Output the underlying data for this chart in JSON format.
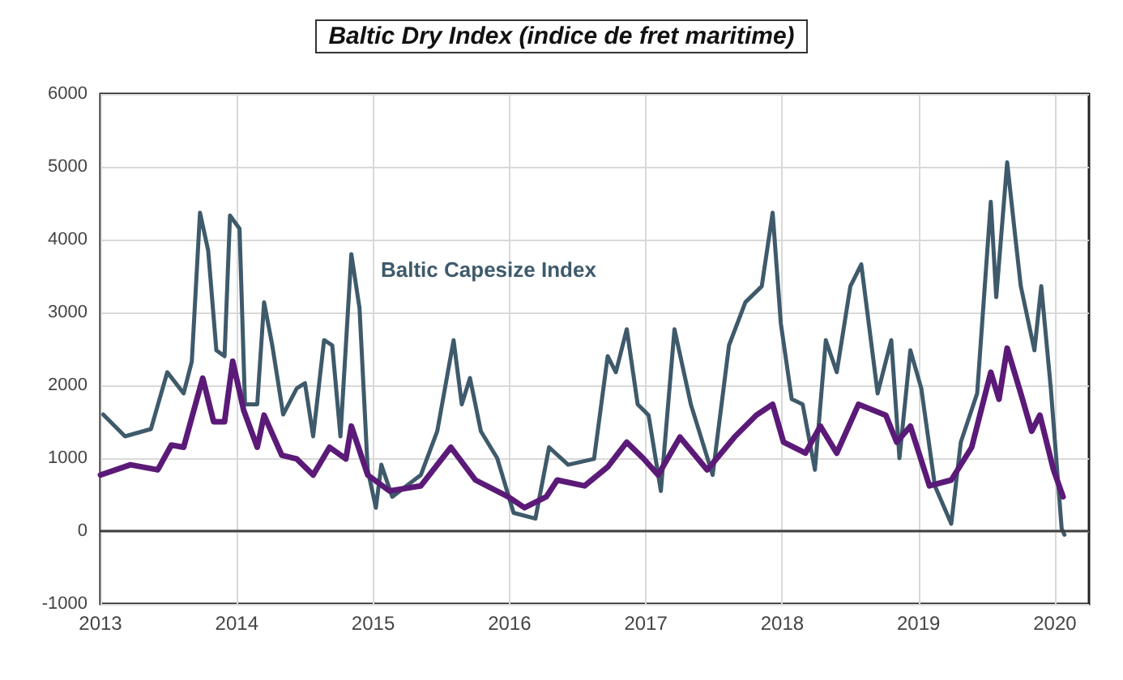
{
  "chart_data": {
    "type": "line",
    "title": "Baltic Dry Index (indice de fret maritime)",
    "xlim": [
      2013,
      2020.25
    ],
    "xticks": [
      2013,
      2014,
      2015,
      2016,
      2017,
      2018,
      2019,
      2020
    ],
    "ylim": [
      -1000,
      6000
    ],
    "yticks": [
      -1000,
      0,
      1000,
      2000,
      3000,
      4000,
      5000,
      6000
    ],
    "grid": true,
    "legend": false,
    "marker": "none",
    "line_style": "solid",
    "ref_lines": [
      {
        "axis": "y",
        "value": 0,
        "color": "#404040"
      }
    ],
    "series": [
      {
        "name": "Baltic Capesize Index",
        "color": "#3e5a6b",
        "x": [
          2013.02,
          2013.18,
          2013.37,
          2013.49,
          2013.61,
          2013.67,
          2013.73,
          2013.79,
          2013.85,
          2013.91,
          2013.95,
          2014.02,
          2014.06,
          2014.15,
          2014.2,
          2014.26,
          2014.34,
          2014.44,
          2014.5,
          2014.56,
          2014.64,
          2014.7,
          2014.76,
          2014.84,
          2014.9,
          2014.96,
          2015.02,
          2015.06,
          2015.14,
          2015.35,
          2015.47,
          2015.59,
          2015.65,
          2015.71,
          2015.79,
          2015.91,
          2016.03,
          2016.19,
          2016.29,
          2016.43,
          2016.62,
          2016.72,
          2016.78,
          2016.86,
          2016.94,
          2017.02,
          2017.11,
          2017.21,
          2017.33,
          2017.49,
          2017.61,
          2017.73,
          2017.85,
          2017.93,
          2017.99,
          2018.07,
          2018.15,
          2018.24,
          2018.32,
          2018.4,
          2018.5,
          2018.58,
          2018.7,
          2018.8,
          2018.86,
          2018.94,
          2019.02,
          2019.12,
          2019.24,
          2019.31,
          2019.43,
          2019.53,
          2019.57,
          2019.65,
          2019.71,
          2019.75,
          2019.85,
          2019.9,
          2019.97,
          2020.05,
          2020.07
        ],
        "values": [
          1600,
          1300,
          1400,
          2180,
          1890,
          2330,
          4370,
          3850,
          2480,
          2400,
          4330,
          4150,
          1740,
          1740,
          3140,
          2550,
          1600,
          1960,
          2030,
          1300,
          2620,
          2550,
          1300,
          3800,
          3060,
          840,
          320,
          910,
          470,
          770,
          1370,
          2620,
          1740,
          2100,
          1370,
          1000,
          250,
          170,
          1150,
          910,
          990,
          2400,
          2180,
          2770,
          1740,
          1590,
          550,
          2770,
          1740,
          770,
          2550,
          3140,
          3360,
          4370,
          2850,
          1810,
          1740,
          840,
          2620,
          2180,
          3360,
          3660,
          1890,
          2620,
          1000,
          2480,
          1960,
          620,
          100,
          1220,
          1890,
          4520,
          3210,
          5060,
          4030,
          3360,
          2480,
          3360,
          1960,
          30,
          -50
        ]
      },
      {
        "color": "#5b1a78",
        "x": [
          2013.0,
          2013.22,
          2013.42,
          2013.52,
          2013.61,
          2013.75,
          2013.83,
          2013.91,
          2013.97,
          2014.05,
          2014.15,
          2014.2,
          2014.33,
          2014.44,
          2014.56,
          2014.68,
          2014.8,
          2014.84,
          2014.96,
          2015.12,
          2015.35,
          2015.57,
          2015.75,
          2015.99,
          2016.11,
          2016.27,
          2016.35,
          2016.55,
          2016.72,
          2016.86,
          2016.98,
          2017.09,
          2017.25,
          2017.45,
          2017.65,
          2017.81,
          2017.93,
          2018.01,
          2018.17,
          2018.28,
          2018.4,
          2018.56,
          2018.76,
          2018.84,
          2018.94,
          2019.08,
          2019.24,
          2019.39,
          2019.53,
          2019.59,
          2019.65,
          2019.75,
          2019.83,
          2019.89,
          2019.99,
          2020.06
        ],
        "values": [
          770,
          910,
          840,
          1180,
          1150,
          2100,
          1500,
          1500,
          2330,
          1660,
          1150,
          1590,
          1040,
          990,
          770,
          1150,
          990,
          1440,
          770,
          550,
          620,
          1150,
          700,
          470,
          320,
          470,
          700,
          620,
          880,
          1220,
          1000,
          770,
          1290,
          840,
          1290,
          1590,
          1740,
          1220,
          1070,
          1440,
          1070,
          1740,
          1590,
          1220,
          1440,
          620,
          700,
          1150,
          2180,
          1810,
          2510,
          1890,
          1370,
          1590,
          840,
          470
        ]
      }
    ]
  }
}
